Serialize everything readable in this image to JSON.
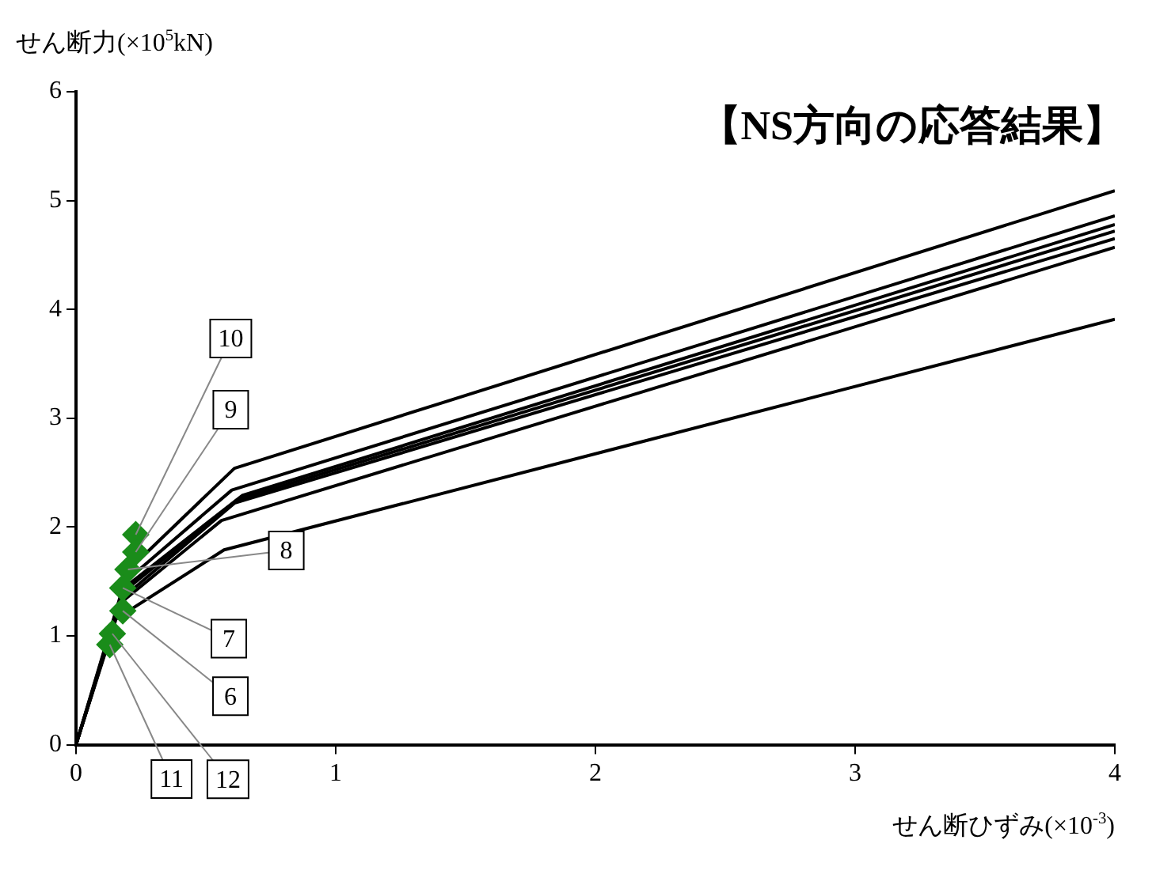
{
  "chart_data": {
    "type": "line",
    "title": "【NS方向の応答結果】",
    "xlabel": "せん断ひずみ(×10$^{-3}$)",
    "ylabel": "せん断力(×10$^{5}$kN)",
    "xlim": [
      0,
      4
    ],
    "xticks": [
      0,
      1,
      2,
      3,
      4
    ],
    "ylim": [
      0,
      6
    ],
    "yticks": [
      0,
      1,
      2,
      3,
      4,
      5,
      6
    ],
    "grid": false,
    "legend": false,
    "marker": "none",
    "line_style": "solid",
    "series": [
      {
        "color": "#000000",
        "x": [
          0,
          0.2,
          0.61,
          4
        ],
        "values": [
          0,
          1.6,
          2.54,
          5.09
        ]
      },
      {
        "color": "#000000",
        "x": [
          0,
          0.19,
          0.6,
          4
        ],
        "values": [
          0,
          1.5,
          2.34,
          4.86
        ]
      },
      {
        "color": "#000000",
        "x": [
          0,
          0.19,
          0.64,
          4
        ],
        "values": [
          0,
          1.45,
          2.29,
          4.78
        ]
      },
      {
        "color": "#000000",
        "x": [
          0,
          0.18,
          0.62,
          4
        ],
        "values": [
          0,
          1.4,
          2.25,
          4.72
        ]
      },
      {
        "color": "#000000",
        "x": [
          0,
          0.18,
          0.61,
          4
        ],
        "values": [
          0,
          1.35,
          2.22,
          4.65
        ]
      },
      {
        "color": "#000000",
        "x": [
          0,
          0.17,
          0.56,
          4
        ],
        "values": [
          0,
          1.3,
          2.06,
          4.57
        ]
      },
      {
        "color": "#000000",
        "x": [
          0,
          0.15,
          0.57,
          4
        ],
        "values": [
          0,
          1.15,
          1.79,
          3.91
        ]
      },
      {
        "type": "scatter",
        "marker": "diamond",
        "color": "#1a8c1a",
        "x": [
          0.23,
          0.23,
          0.2,
          0.18,
          0.18,
          0.14,
          0.13
        ],
        "values": [
          1.93,
          1.77,
          1.61,
          1.44,
          1.23,
          1.02,
          0.92
        ]
      }
    ],
    "annotations": [
      {
        "text": "10",
        "x": 0.23,
        "y": 1.93
      },
      {
        "text": "9",
        "x": 0.23,
        "y": 1.77
      },
      {
        "text": "8",
        "x": 0.2,
        "y": 1.61
      },
      {
        "text": "7",
        "x": 0.18,
        "y": 1.44
      },
      {
        "text": "6",
        "x": 0.18,
        "y": 1.23
      },
      {
        "text": "12",
        "x": 0.14,
        "y": 1.02
      },
      {
        "text": "11",
        "x": 0.13,
        "y": 0.92
      }
    ]
  }
}
